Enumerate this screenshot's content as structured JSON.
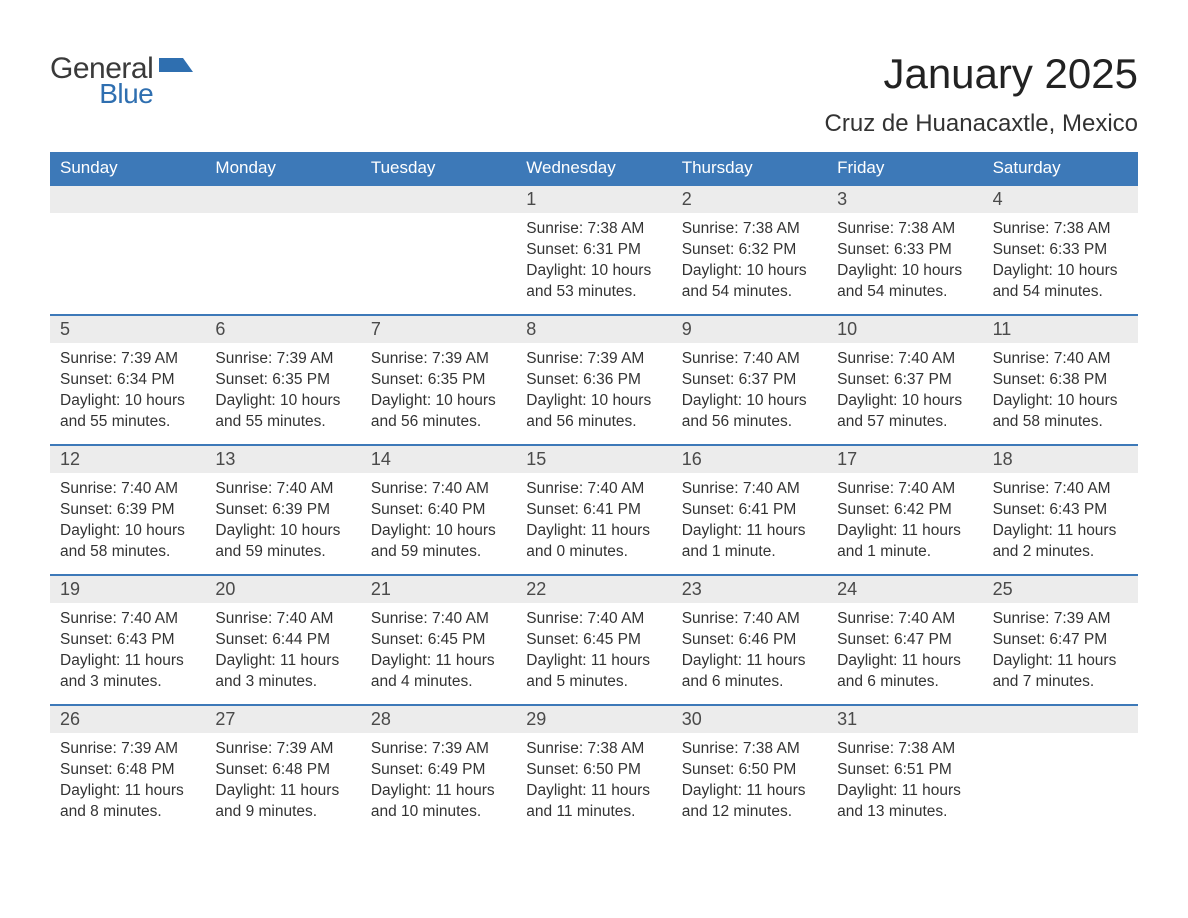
{
  "brand": {
    "top": "General",
    "bottom": "Blue",
    "icon_color": "#2f6fb0"
  },
  "title": {
    "month": "January 2025",
    "location": "Cruz de Huanacaxtle, Mexico"
  },
  "colors": {
    "header_bg": "#3d79b8",
    "header_text": "#ffffff",
    "daynum_bg": "#ececec",
    "daynum_text": "#4a4a4a",
    "body_text": "#333333",
    "row_border": "#3d79b8",
    "page_bg": "#ffffff"
  },
  "typography": {
    "month_title_pt": 42,
    "location_pt": 24,
    "dow_pt": 17,
    "daynum_pt": 18,
    "body_pt": 15.5,
    "font_family": "Arial"
  },
  "days_of_week": [
    "Sunday",
    "Monday",
    "Tuesday",
    "Wednesday",
    "Thursday",
    "Friday",
    "Saturday"
  ],
  "weeks": [
    [
      {
        "blank": true
      },
      {
        "blank": true
      },
      {
        "blank": true
      },
      {
        "n": "1",
        "sunrise": "Sunrise: 7:38 AM",
        "sunset": "Sunset: 6:31 PM",
        "daylight": "Daylight: 10 hours and 53 minutes."
      },
      {
        "n": "2",
        "sunrise": "Sunrise: 7:38 AM",
        "sunset": "Sunset: 6:32 PM",
        "daylight": "Daylight: 10 hours and 54 minutes."
      },
      {
        "n": "3",
        "sunrise": "Sunrise: 7:38 AM",
        "sunset": "Sunset: 6:33 PM",
        "daylight": "Daylight: 10 hours and 54 minutes."
      },
      {
        "n": "4",
        "sunrise": "Sunrise: 7:38 AM",
        "sunset": "Sunset: 6:33 PM",
        "daylight": "Daylight: 10 hours and 54 minutes."
      }
    ],
    [
      {
        "n": "5",
        "sunrise": "Sunrise: 7:39 AM",
        "sunset": "Sunset: 6:34 PM",
        "daylight": "Daylight: 10 hours and 55 minutes."
      },
      {
        "n": "6",
        "sunrise": "Sunrise: 7:39 AM",
        "sunset": "Sunset: 6:35 PM",
        "daylight": "Daylight: 10 hours and 55 minutes."
      },
      {
        "n": "7",
        "sunrise": "Sunrise: 7:39 AM",
        "sunset": "Sunset: 6:35 PM",
        "daylight": "Daylight: 10 hours and 56 minutes."
      },
      {
        "n": "8",
        "sunrise": "Sunrise: 7:39 AM",
        "sunset": "Sunset: 6:36 PM",
        "daylight": "Daylight: 10 hours and 56 minutes."
      },
      {
        "n": "9",
        "sunrise": "Sunrise: 7:40 AM",
        "sunset": "Sunset: 6:37 PM",
        "daylight": "Daylight: 10 hours and 56 minutes."
      },
      {
        "n": "10",
        "sunrise": "Sunrise: 7:40 AM",
        "sunset": "Sunset: 6:37 PM",
        "daylight": "Daylight: 10 hours and 57 minutes."
      },
      {
        "n": "11",
        "sunrise": "Sunrise: 7:40 AM",
        "sunset": "Sunset: 6:38 PM",
        "daylight": "Daylight: 10 hours and 58 minutes."
      }
    ],
    [
      {
        "n": "12",
        "sunrise": "Sunrise: 7:40 AM",
        "sunset": "Sunset: 6:39 PM",
        "daylight": "Daylight: 10 hours and 58 minutes."
      },
      {
        "n": "13",
        "sunrise": "Sunrise: 7:40 AM",
        "sunset": "Sunset: 6:39 PM",
        "daylight": "Daylight: 10 hours and 59 minutes."
      },
      {
        "n": "14",
        "sunrise": "Sunrise: 7:40 AM",
        "sunset": "Sunset: 6:40 PM",
        "daylight": "Daylight: 10 hours and 59 minutes."
      },
      {
        "n": "15",
        "sunrise": "Sunrise: 7:40 AM",
        "sunset": "Sunset: 6:41 PM",
        "daylight": "Daylight: 11 hours and 0 minutes."
      },
      {
        "n": "16",
        "sunrise": "Sunrise: 7:40 AM",
        "sunset": "Sunset: 6:41 PM",
        "daylight": "Daylight: 11 hours and 1 minute."
      },
      {
        "n": "17",
        "sunrise": "Sunrise: 7:40 AM",
        "sunset": "Sunset: 6:42 PM",
        "daylight": "Daylight: 11 hours and 1 minute."
      },
      {
        "n": "18",
        "sunrise": "Sunrise: 7:40 AM",
        "sunset": "Sunset: 6:43 PM",
        "daylight": "Daylight: 11 hours and 2 minutes."
      }
    ],
    [
      {
        "n": "19",
        "sunrise": "Sunrise: 7:40 AM",
        "sunset": "Sunset: 6:43 PM",
        "daylight": "Daylight: 11 hours and 3 minutes."
      },
      {
        "n": "20",
        "sunrise": "Sunrise: 7:40 AM",
        "sunset": "Sunset: 6:44 PM",
        "daylight": "Daylight: 11 hours and 3 minutes."
      },
      {
        "n": "21",
        "sunrise": "Sunrise: 7:40 AM",
        "sunset": "Sunset: 6:45 PM",
        "daylight": "Daylight: 11 hours and 4 minutes."
      },
      {
        "n": "22",
        "sunrise": "Sunrise: 7:40 AM",
        "sunset": "Sunset: 6:45 PM",
        "daylight": "Daylight: 11 hours and 5 minutes."
      },
      {
        "n": "23",
        "sunrise": "Sunrise: 7:40 AM",
        "sunset": "Sunset: 6:46 PM",
        "daylight": "Daylight: 11 hours and 6 minutes."
      },
      {
        "n": "24",
        "sunrise": "Sunrise: 7:40 AM",
        "sunset": "Sunset: 6:47 PM",
        "daylight": "Daylight: 11 hours and 6 minutes."
      },
      {
        "n": "25",
        "sunrise": "Sunrise: 7:39 AM",
        "sunset": "Sunset: 6:47 PM",
        "daylight": "Daylight: 11 hours and 7 minutes."
      }
    ],
    [
      {
        "n": "26",
        "sunrise": "Sunrise: 7:39 AM",
        "sunset": "Sunset: 6:48 PM",
        "daylight": "Daylight: 11 hours and 8 minutes."
      },
      {
        "n": "27",
        "sunrise": "Sunrise: 7:39 AM",
        "sunset": "Sunset: 6:48 PM",
        "daylight": "Daylight: 11 hours and 9 minutes."
      },
      {
        "n": "28",
        "sunrise": "Sunrise: 7:39 AM",
        "sunset": "Sunset: 6:49 PM",
        "daylight": "Daylight: 11 hours and 10 minutes."
      },
      {
        "n": "29",
        "sunrise": "Sunrise: 7:38 AM",
        "sunset": "Sunset: 6:50 PM",
        "daylight": "Daylight: 11 hours and 11 minutes."
      },
      {
        "n": "30",
        "sunrise": "Sunrise: 7:38 AM",
        "sunset": "Sunset: 6:50 PM",
        "daylight": "Daylight: 11 hours and 12 minutes."
      },
      {
        "n": "31",
        "sunrise": "Sunrise: 7:38 AM",
        "sunset": "Sunset: 6:51 PM",
        "daylight": "Daylight: 11 hours and 13 minutes."
      },
      {
        "blank": true
      }
    ]
  ]
}
